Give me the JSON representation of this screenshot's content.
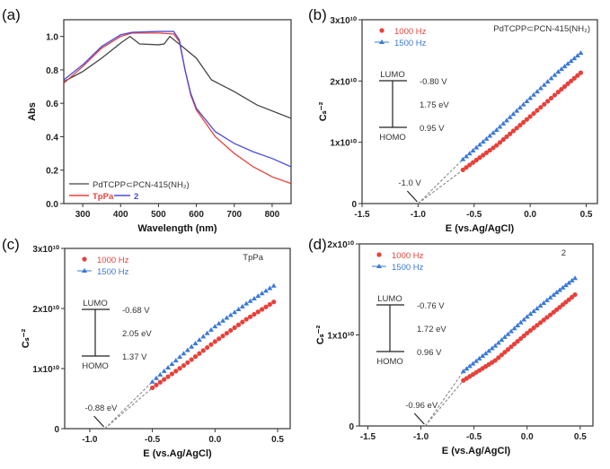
{
  "chart_data": [
    {
      "panel": "(a)",
      "type": "line",
      "xlabel": "Wavelength (nm)",
      "ylabel": "Abs",
      "xlim": [
        250,
        850
      ],
      "ylim": [
        0,
        1.1
      ],
      "xticks": [
        300,
        400,
        500,
        600,
        700,
        800
      ],
      "xtick_labels": [
        "300",
        "400",
        "500",
        "600",
        "700",
        "800"
      ],
      "yticks": [
        0,
        0.2,
        0.4,
        0.6,
        0.8,
        1.0
      ],
      "ytick_labels": [
        "0.0",
        "0.2",
        "0.4",
        "0.6",
        "0.8",
        "1.0"
      ],
      "series": [
        {
          "name": "PdTCPP⊂PCN-415(NH₂)",
          "color": "#444444",
          "points": [
            [
              250,
              0.73
            ],
            [
              275,
              0.76
            ],
            [
              300,
              0.79
            ],
            [
              350,
              0.87
            ],
            [
              400,
              0.96
            ],
            [
              425,
              1.0
            ],
            [
              450,
              0.955
            ],
            [
              500,
              0.95
            ],
            [
              515,
              0.955
            ],
            [
              530,
              1.0
            ],
            [
              560,
              0.945
            ],
            [
              600,
              0.87
            ],
            [
              640,
              0.74
            ],
            [
              700,
              0.67
            ],
            [
              760,
              0.59
            ],
            [
              850,
              0.51
            ]
          ]
        },
        {
          "name": "TpPa",
          "color": "#e8403a",
          "points": [
            [
              250,
              0.72
            ],
            [
              300,
              0.82
            ],
            [
              350,
              0.93
            ],
            [
              400,
              1.0
            ],
            [
              430,
              1.02
            ],
            [
              500,
              1.02
            ],
            [
              540,
              1.015
            ],
            [
              555,
              0.97
            ],
            [
              570,
              0.8
            ],
            [
              585,
              0.65
            ],
            [
              600,
              0.56
            ],
            [
              650,
              0.4
            ],
            [
              700,
              0.3
            ],
            [
              750,
              0.22
            ],
            [
              800,
              0.16
            ],
            [
              850,
              0.12
            ]
          ]
        },
        {
          "name": "2",
          "color": "#4a4ae0",
          "points": [
            [
              250,
              0.74
            ],
            [
              300,
              0.83
            ],
            [
              350,
              0.94
            ],
            [
              400,
              1.01
            ],
            [
              430,
              1.025
            ],
            [
              500,
              1.03
            ],
            [
              540,
              1.03
            ],
            [
              555,
              0.98
            ],
            [
              570,
              0.8
            ],
            [
              585,
              0.66
            ],
            [
              600,
              0.57
            ],
            [
              650,
              0.43
            ],
            [
              700,
              0.36
            ],
            [
              750,
              0.31
            ],
            [
              800,
              0.27
            ],
            [
              850,
              0.22
            ]
          ]
        }
      ]
    },
    {
      "panel": "(b)",
      "type": "scatter",
      "title": "PdTCPP⊂PCN-415(NH₂)",
      "xlabel": "E (vs.Ag/AgCl)",
      "ylabel": "Cₛ⁻²",
      "xlim": [
        -1.5,
        0.6
      ],
      "ylim": [
        0,
        30000000000.0
      ],
      "xticks": [
        -1.5,
        -1.0,
        -0.5,
        0.0,
        0.5
      ],
      "xtick_labels": [
        "-1.5",
        "-1.0",
        "-0.5",
        "0.0",
        "0.5"
      ],
      "yticks": [
        0,
        10000000000.0,
        20000000000.0,
        30000000000.0
      ],
      "ytick_labels": [
        "0",
        "1x10¹⁰",
        "2x10¹⁰",
        "3x10¹⁰"
      ],
      "intercept": -1.0,
      "intercept_label": "-1.0 V",
      "levels": {
        "lumo": "LUMO",
        "homo": "HOMO",
        "lumo_value": "-0.80 V",
        "gap": "1.75 eV",
        "homo_value": "0.95 V"
      },
      "series": [
        {
          "name": "1000 Hz",
          "color": "#e8403a",
          "marker": "circle",
          "points": [
            [
              -0.6,
              5500000000.0
            ],
            [
              -0.3,
              9500000000.0
            ],
            [
              0.0,
              14200000000.0
            ],
            [
              0.25,
              18200000000.0
            ],
            [
              0.48,
              21800000000.0
            ]
          ]
        },
        {
          "name": "1500 Hz",
          "color": "#3a78d8",
          "marker": "triangle",
          "points": [
            [
              -0.6,
              7200000000.0
            ],
            [
              -0.3,
              12000000000.0
            ],
            [
              0.0,
              17200000000.0
            ],
            [
              0.25,
              21500000000.0
            ],
            [
              0.48,
              25000000000.0
            ]
          ]
        }
      ]
    },
    {
      "panel": "(c)",
      "type": "scatter",
      "title": "TpPa",
      "xlabel": "E (vs.Ag/AgCl)",
      "ylabel": "Cₛ⁻²",
      "xlim": [
        -1.2,
        0.6
      ],
      "ylim": [
        0,
        30000000000.0
      ],
      "xticks": [
        -1.0,
        -0.5,
        0.0,
        0.5
      ],
      "xtick_labels": [
        "-1.0",
        "-0.5",
        "0.0",
        "0.5"
      ],
      "yticks": [
        0,
        10000000000.0,
        20000000000.0,
        30000000000.0
      ],
      "ytick_labels": [
        "0",
        "1x10¹⁰",
        "2x10¹⁰",
        "3x10¹⁰"
      ],
      "intercept": -0.88,
      "intercept_label": "-0.88 eV",
      "levels": {
        "lumo": "LUMO",
        "homo": "HOMO",
        "lumo_value": "-0.68 V",
        "gap": "2.05 eV",
        "homo_value": "1.37 V"
      },
      "series": [
        {
          "name": "1000 Hz",
          "color": "#e8403a",
          "marker": "circle",
          "points": [
            [
              -0.5,
              6800000000.0
            ],
            [
              -0.25,
              10500000000.0
            ],
            [
              0.0,
              14500000000.0
            ],
            [
              0.25,
              18200000000.0
            ],
            [
              0.5,
              21500000000.0
            ]
          ]
        },
        {
          "name": "1500 Hz",
          "color": "#3a78d8",
          "marker": "triangle",
          "points": [
            [
              -0.5,
              7800000000.0
            ],
            [
              -0.25,
              12500000000.0
            ],
            [
              0.0,
              17000000000.0
            ],
            [
              0.25,
              20800000000.0
            ],
            [
              0.5,
              24200000000.0
            ]
          ]
        }
      ]
    },
    {
      "panel": "(d)",
      "type": "scatter",
      "title": "2",
      "xlabel": "E (vs.Ag/AgCl)",
      "ylabel": "Cₛ⁻²",
      "xlim": [
        -1.58,
        0.62
      ],
      "ylim": [
        0,
        20000000000.0
      ],
      "xticks": [
        -1.5,
        -1.0,
        -0.5,
        0.0,
        0.5
      ],
      "xtick_labels": [
        "-1.5",
        "-1.0",
        "-0.5",
        "0.0",
        "0.5"
      ],
      "yticks": [
        0,
        10000000000.0,
        20000000000.0
      ],
      "ytick_labels": [
        "0",
        "1x10¹⁰",
        "2x10¹⁰"
      ],
      "intercept": -0.96,
      "intercept_label": "-0.96 eV",
      "levels": {
        "lumo": "LUMO",
        "homo": "HOMO",
        "lumo_value": "-0.76 V",
        "gap": "1.72 eV",
        "homo_value": "0.96 V"
      },
      "series": [
        {
          "name": "1000 Hz",
          "color": "#e8403a",
          "marker": "circle",
          "points": [
            [
              -0.6,
              5000000000.0
            ],
            [
              -0.3,
              7200000000.0
            ],
            [
              0.0,
              10200000000.0
            ],
            [
              0.25,
              12500000000.0
            ],
            [
              0.48,
              14700000000.0
            ]
          ]
        },
        {
          "name": "1500 Hz",
          "color": "#3a78d8",
          "marker": "triangle",
          "points": [
            [
              -0.6,
              6000000000.0
            ],
            [
              -0.3,
              8800000000.0
            ],
            [
              0.0,
              12000000000.0
            ],
            [
              0.25,
              14400000000.0
            ],
            [
              0.48,
              16500000000.0
            ]
          ]
        }
      ]
    }
  ]
}
